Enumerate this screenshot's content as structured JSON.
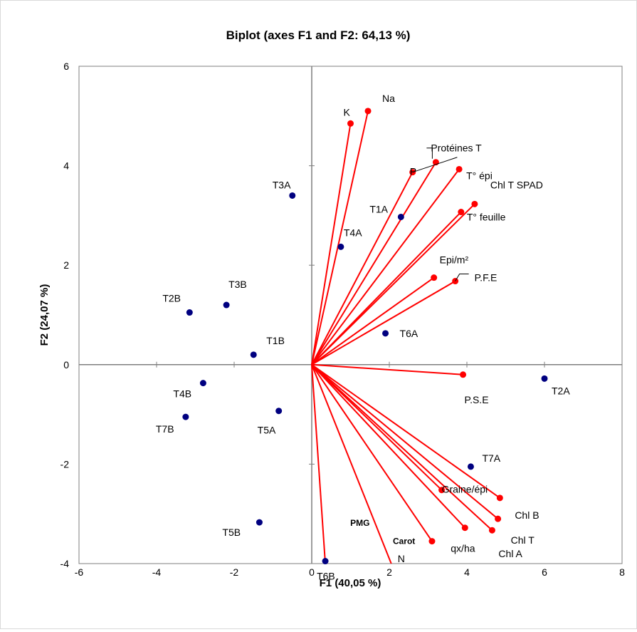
{
  "chart_data": {
    "type": "scatter",
    "title": "Biplot (axes F1 and F2: 64,13 %)",
    "xlabel": "F1 (40,05 %)",
    "ylabel": "F2 (24,07 %)",
    "xlim": [
      -6,
      8
    ],
    "ylim": [
      -4,
      6
    ],
    "x_ticks": [
      "-6",
      "-4",
      "-2",
      "0",
      "2",
      "4",
      "6",
      "8"
    ],
    "y_ticks": [
      "-4",
      "-2",
      "0",
      "2",
      "4",
      "6"
    ],
    "grid": false,
    "legend": "none",
    "observations_color": "#000080",
    "variables_color": "#ff0000",
    "observations": [
      {
        "label": "T1A",
        "x": 2.3,
        "y": 2.97
      },
      {
        "label": "T1B",
        "x": -1.5,
        "y": 0.2
      },
      {
        "label": "T2A",
        "x": 6.0,
        "y": -0.28
      },
      {
        "label": "T2B",
        "x": -3.15,
        "y": 1.05
      },
      {
        "label": "T3A",
        "x": -0.5,
        "y": 3.4
      },
      {
        "label": "T3B",
        "x": -2.2,
        "y": 1.2
      },
      {
        "label": "T4A",
        "x": 0.75,
        "y": 2.37
      },
      {
        "label": "T4B",
        "x": -2.8,
        "y": -0.37
      },
      {
        "label": "T5A",
        "x": -0.85,
        "y": -0.93
      },
      {
        "label": "T5B",
        "x": -1.35,
        "y": -3.17
      },
      {
        "label": "T6A",
        "x": 1.9,
        "y": 0.63
      },
      {
        "label": "T6B",
        "x": 0.35,
        "y": -3.95
      },
      {
        "label": "T7A",
        "x": 4.1,
        "y": -2.05
      },
      {
        "label": "T7B",
        "x": -3.25,
        "y": -1.05
      }
    ],
    "variables": [
      {
        "label": "Na",
        "x": 1.45,
        "y": 5.1
      },
      {
        "label": "K",
        "x": 1.0,
        "y": 4.85
      },
      {
        "label": "Protéines T",
        "x": 3.2,
        "y": 4.07
      },
      {
        "label": "P",
        "x": 2.6,
        "y": 3.87
      },
      {
        "label": "T° épi",
        "x": 3.8,
        "y": 3.93
      },
      {
        "label": "Chl T SPAD",
        "x": 4.2,
        "y": 3.23
      },
      {
        "label": "T° feuille",
        "x": 3.85,
        "y": 3.07
      },
      {
        "label": "Epi/m²",
        "x": 3.15,
        "y": 1.75
      },
      {
        "label": "P.F.E",
        "x": 3.7,
        "y": 1.68
      },
      {
        "label": "P.S.E",
        "x": 3.9,
        "y": -0.2
      },
      {
        "label": "Graine/épi",
        "x": 3.35,
        "y": -2.52
      },
      {
        "label": "Chl B",
        "x": 4.85,
        "y": -2.68
      },
      {
        "label": "Chl T",
        "x": 4.8,
        "y": -3.1
      },
      {
        "label": "qx/ha",
        "x": 3.95,
        "y": -3.28
      },
      {
        "label": "Chl A",
        "x": 4.65,
        "y": -3.33
      },
      {
        "label": "Carot",
        "x": 3.1,
        "y": -3.55
      },
      {
        "label": "N",
        "x": 2.05,
        "y": -4.0
      },
      {
        "label": "PMG",
        "x": 0.35,
        "y": -4.0
      }
    ]
  }
}
